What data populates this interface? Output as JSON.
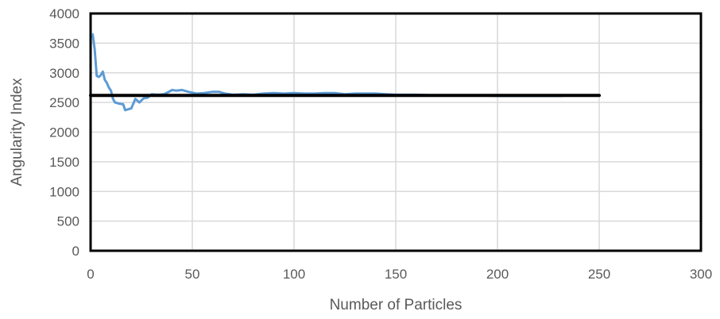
{
  "chart_data": {
    "type": "line",
    "title": "",
    "xlabel": "Number of Particles",
    "ylabel": "Angularity Index",
    "xlim": [
      0,
      300
    ],
    "ylim": [
      0,
      4000
    ],
    "x_ticks": [
      0,
      50,
      100,
      150,
      200,
      250,
      300
    ],
    "y_ticks": [
      0,
      500,
      1000,
      1500,
      2000,
      2500,
      3000,
      3500,
      4000
    ],
    "grid": true,
    "legend": "none",
    "series": [
      {
        "color": "#5b9bd5",
        "points": [
          [
            1,
            3650
          ],
          [
            2,
            3400
          ],
          [
            3,
            2950
          ],
          [
            4,
            2930
          ],
          [
            5,
            2960
          ],
          [
            6,
            3020
          ],
          [
            7,
            2880
          ],
          [
            8,
            2830
          ],
          [
            9,
            2750
          ],
          [
            10,
            2700
          ],
          [
            11,
            2560
          ],
          [
            12,
            2500
          ],
          [
            14,
            2480
          ],
          [
            16,
            2470
          ],
          [
            17,
            2370
          ],
          [
            18,
            2380
          ],
          [
            20,
            2400
          ],
          [
            22,
            2560
          ],
          [
            24,
            2500
          ],
          [
            26,
            2570
          ],
          [
            28,
            2580
          ],
          [
            30,
            2640
          ],
          [
            33,
            2630
          ],
          [
            36,
            2640
          ],
          [
            38,
            2670
          ],
          [
            40,
            2710
          ],
          [
            42,
            2700
          ],
          [
            45,
            2710
          ],
          [
            48,
            2680
          ],
          [
            52,
            2650
          ],
          [
            56,
            2660
          ],
          [
            60,
            2680
          ],
          [
            63,
            2680
          ],
          [
            66,
            2650
          ],
          [
            70,
            2630
          ],
          [
            75,
            2640
          ],
          [
            80,
            2630
          ],
          [
            85,
            2650
          ],
          [
            90,
            2660
          ],
          [
            95,
            2650
          ],
          [
            100,
            2660
          ],
          [
            105,
            2650
          ],
          [
            110,
            2650
          ],
          [
            115,
            2660
          ],
          [
            120,
            2660
          ],
          [
            125,
            2640
          ],
          [
            130,
            2650
          ],
          [
            135,
            2650
          ],
          [
            140,
            2650
          ],
          [
            145,
            2640
          ],
          [
            150,
            2630
          ],
          [
            160,
            2630
          ],
          [
            170,
            2620
          ],
          [
            180,
            2620
          ],
          [
            190,
            2620
          ],
          [
            200,
            2610
          ],
          [
            210,
            2610
          ],
          [
            220,
            2610
          ],
          [
            232,
            2610
          ]
        ]
      },
      {
        "color": "#000000",
        "points": [
          [
            0,
            2620
          ],
          [
            250,
            2620
          ]
        ]
      }
    ]
  }
}
